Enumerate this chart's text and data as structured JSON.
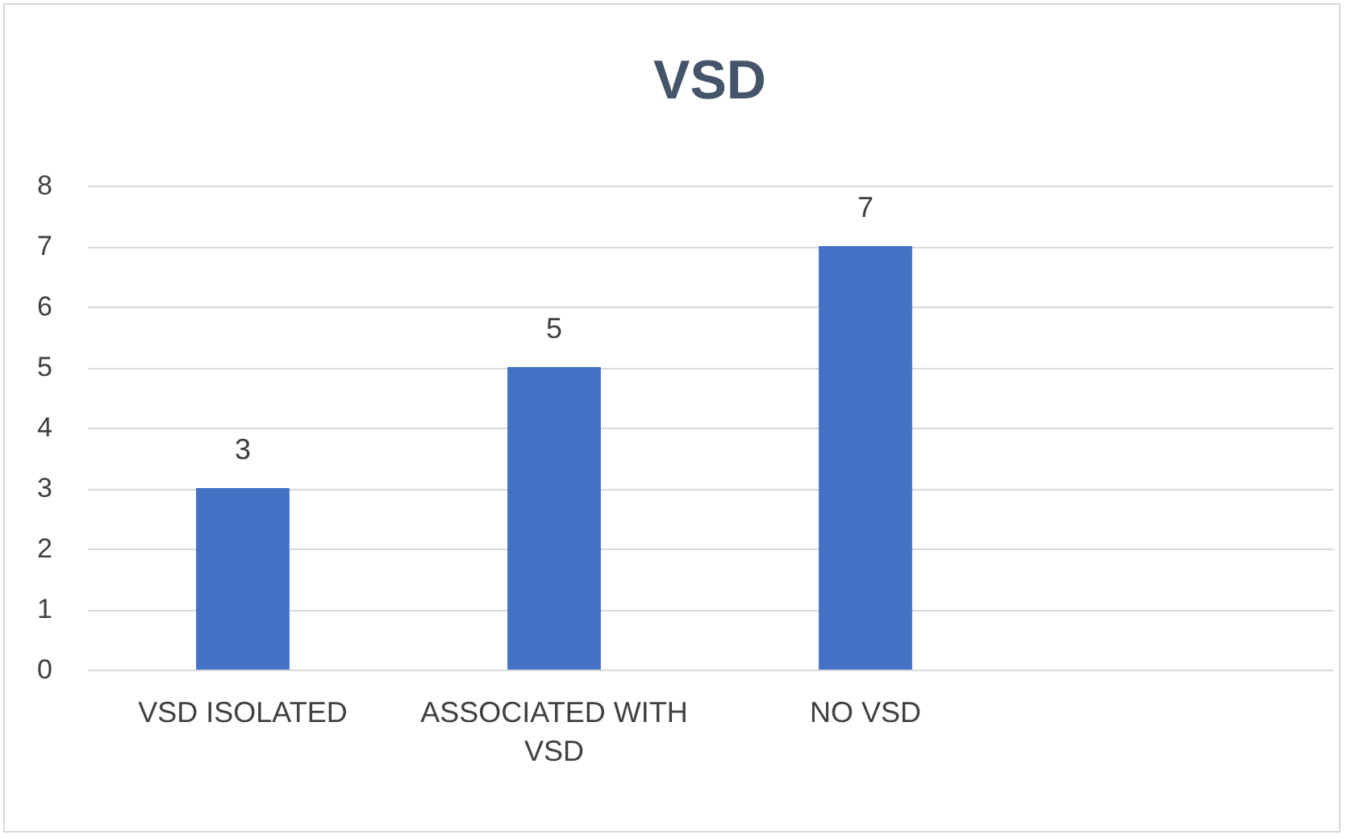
{
  "chart_data": {
    "type": "bar",
    "title": "VSD",
    "categories": [
      "VSD ISOLATED",
      "ASSOCIATED WITH VSD",
      "NO VSD",
      null
    ],
    "values": [
      3,
      5,
      7,
      null
    ],
    "color": "#4472c4",
    "ylim": [
      0,
      8
    ],
    "yticks": [
      0,
      1,
      2,
      3,
      4,
      5,
      6,
      7,
      8
    ],
    "grid": "y",
    "data_labels": true
  }
}
